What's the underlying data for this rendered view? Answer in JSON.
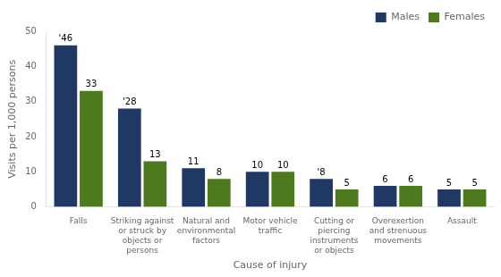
{
  "chart_data": {
    "type": "bar",
    "categories": [
      "Falls",
      "Striking against\nor struck by\nobjects or\npersons",
      "Natural and\nenvironmental\nfactors",
      "Motor vehicle\ntraffic",
      "Cutting or\npiercing\ninstruments\nor objects",
      "Overexertion\nand strenuous\nmovements",
      "Assault"
    ],
    "series": [
      {
        "name": "Males",
        "color": "#1f3864",
        "values": [
          46,
          28,
          11,
          10,
          8,
          6,
          5
        ],
        "value_labels": [
          "'46",
          "'28",
          "11",
          "10",
          "'8",
          "6",
          "5"
        ]
      },
      {
        "name": "Females",
        "color": "#4e7a1e",
        "values": [
          33,
          13,
          8,
          10,
          5,
          6,
          5
        ],
        "value_labels": [
          "33",
          "13",
          "8",
          "10",
          "5",
          "6",
          "5"
        ]
      }
    ],
    "x_label": "Cause of injury",
    "y_label": "Visits per 1,000 persons",
    "ylim": [
      0,
      50
    ],
    "yticks": [
      0,
      10,
      20,
      30,
      40,
      50
    ],
    "grid": false,
    "legend": "upper right",
    "data_labels": true
  }
}
